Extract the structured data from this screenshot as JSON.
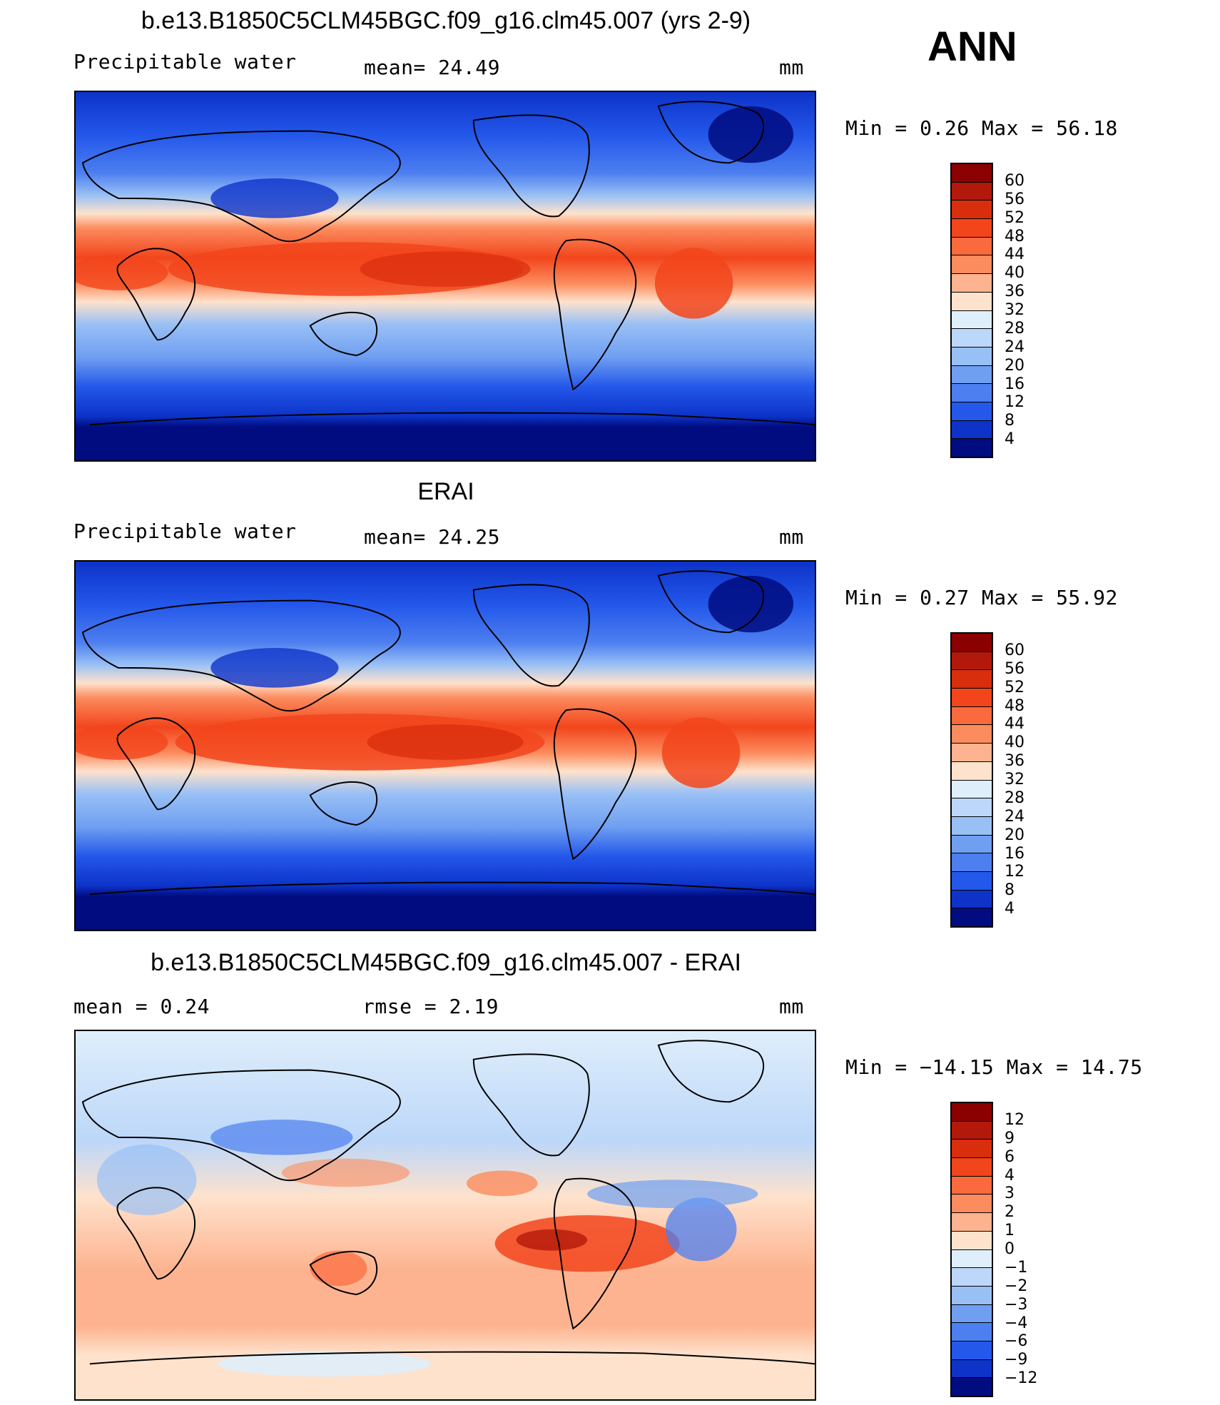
{
  "header": {
    "ann_label": "ANN"
  },
  "panels": [
    {
      "title": "b.e13.B1850C5CLM45BGC.f09_g16.clm45.007 (yrs 2-9)",
      "left_label": "Precipitable  water",
      "center_label": "mean=   24.49",
      "units": "mm",
      "minmax": "Min =    0.26  Max =    56.18"
    },
    {
      "title": "ERAI",
      "left_label": "Precipitable  water",
      "center_label": "mean=   24.25",
      "units": "mm",
      "minmax": "Min =    0.27  Max =    55.92"
    },
    {
      "title": "b.e13.B1850C5CLM45BGC.f09_g16.clm45.007 - ERAI",
      "left_label": "mean  =     0.24",
      "center_label": "rmse  =     2.19",
      "units": "mm",
      "minmax": "Min = −14.15  Max =    14.75"
    }
  ],
  "colorbars": {
    "absolute": {
      "ticks": [
        "60",
        "56",
        "52",
        "48",
        "44",
        "40",
        "36",
        "32",
        "28",
        "24",
        "20",
        "16",
        "12",
        "8",
        "4"
      ],
      "colors": [
        "#8b0000",
        "#b3190a",
        "#d92e0e",
        "#f2451c",
        "#fb6a3c",
        "#fc8c5e",
        "#fdb38f",
        "#fee2cc",
        "#dfeefb",
        "#bcd7f9",
        "#99c0f5",
        "#6f9ff1",
        "#4d7ff0",
        "#2458ea",
        "#0d33c9",
        "#000c80"
      ]
    },
    "difference": {
      "ticks": [
        "12",
        "9",
        "6",
        "4",
        "3",
        "2",
        "1",
        "0",
        "−1",
        "−2",
        "−3",
        "−4",
        "−6",
        "−9",
        "−12"
      ],
      "colors": [
        "#8b0000",
        "#b3190a",
        "#d92e0e",
        "#f2451c",
        "#fb6a3c",
        "#fc8c5e",
        "#fdb38f",
        "#fee2cc",
        "#dfeefb",
        "#bcd7f9",
        "#99c0f5",
        "#6f9ff1",
        "#4d7ff0",
        "#2458ea",
        "#0d33c9",
        "#000c80"
      ]
    }
  }
}
